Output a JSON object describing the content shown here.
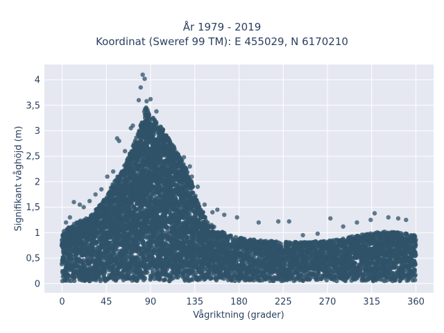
{
  "chart_data": {
    "type": "scatter",
    "title_lines": [
      "År 1979 - 2019",
      "Koordinat (Sweref 99 TM): E 455029, N 6170210"
    ],
    "xlabel": "Vågriktning (grader)",
    "ylabel": "Signifikant våghöjd (m)",
    "xlim": [
      -18,
      378
    ],
    "ylim": [
      -0.18,
      4.3
    ],
    "x_ticks": [
      0,
      45,
      90,
      135,
      180,
      225,
      270,
      315,
      360
    ],
    "x_tick_labels": [
      "0",
      "45",
      "90",
      "135",
      "180",
      "225",
      "270",
      "315",
      "360"
    ],
    "y_ticks": [
      0,
      0.5,
      1,
      1.5,
      2,
      2.5,
      3,
      3.5,
      4
    ],
    "y_tick_labels": [
      "0",
      "0,5",
      "1",
      "1,5",
      "2",
      "2,5",
      "3",
      "3,5",
      "4"
    ],
    "grid": true,
    "legend": "none",
    "marker_color": "#2f5269",
    "plot_background": "#e5e8f1",
    "envelope": {
      "direction": [
        0,
        10,
        20,
        30,
        40,
        45,
        50,
        60,
        70,
        80,
        85,
        90,
        100,
        110,
        120,
        130,
        135,
        140,
        150,
        160,
        170,
        180,
        200,
        225,
        250,
        270,
        290,
        300,
        315,
        330,
        345,
        360
      ],
      "upper_wave_height": [
        1.0,
        1.15,
        1.25,
        1.35,
        1.6,
        1.7,
        1.9,
        2.2,
        2.6,
        3.1,
        3.5,
        3.3,
        3.1,
        2.8,
        2.5,
        2.1,
        1.8,
        1.5,
        1.2,
        1.05,
        0.95,
        0.9,
        0.85,
        0.82,
        0.82,
        0.85,
        0.9,
        0.95,
        1.0,
        1.02,
        1.0,
        0.95
      ],
      "lower_wave_height": [
        0.05,
        0.05,
        0.05,
        0.05,
        0.05,
        0.05,
        0.05,
        0.05,
        0.05,
        0.05,
        0.05,
        0.05,
        0.05,
        0.05,
        0.05,
        0.05,
        0.05,
        0.05,
        0.05,
        0.05,
        0.05,
        0.05,
        0.05,
        0.05,
        0.05,
        0.05,
        0.05,
        0.05,
        0.05,
        0.05,
        0.05,
        0.05
      ]
    },
    "outlier_points": [
      {
        "x": 82,
        "y": 4.1
      },
      {
        "x": 84,
        "y": 4.02
      },
      {
        "x": 80,
        "y": 3.85
      },
      {
        "x": 78,
        "y": 3.6
      },
      {
        "x": 90,
        "y": 3.62
      },
      {
        "x": 86,
        "y": 3.58
      },
      {
        "x": 96,
        "y": 3.38
      },
      {
        "x": 72,
        "y": 3.1
      },
      {
        "x": 70,
        "y": 3.05
      },
      {
        "x": 58,
        "y": 2.8
      },
      {
        "x": 56,
        "y": 2.85
      },
      {
        "x": 118,
        "y": 2.45
      },
      {
        "x": 124,
        "y": 2.48
      },
      {
        "x": 130,
        "y": 2.3
      },
      {
        "x": 132,
        "y": 2.1
      },
      {
        "x": 138,
        "y": 1.9
      },
      {
        "x": 145,
        "y": 1.55
      },
      {
        "x": 153,
        "y": 1.4
      },
      {
        "x": 158,
        "y": 1.45
      },
      {
        "x": 165,
        "y": 1.35
      },
      {
        "x": 178,
        "y": 1.3
      },
      {
        "x": 200,
        "y": 1.2
      },
      {
        "x": 220,
        "y": 1.22
      },
      {
        "x": 231,
        "y": 1.22
      },
      {
        "x": 245,
        "y": 0.95
      },
      {
        "x": 260,
        "y": 0.98
      },
      {
        "x": 273,
        "y": 1.28
      },
      {
        "x": 286,
        "y": 1.12
      },
      {
        "x": 300,
        "y": 1.2
      },
      {
        "x": 314,
        "y": 1.25
      },
      {
        "x": 318,
        "y": 1.38
      },
      {
        "x": 332,
        "y": 1.3
      },
      {
        "x": 342,
        "y": 1.28
      },
      {
        "x": 350,
        "y": 1.25
      },
      {
        "x": 12,
        "y": 1.6
      },
      {
        "x": 18,
        "y": 1.55
      },
      {
        "x": 22,
        "y": 1.5
      },
      {
        "x": 34,
        "y": 1.75
      },
      {
        "x": 40,
        "y": 1.85
      },
      {
        "x": 46,
        "y": 2.1
      },
      {
        "x": 52,
        "y": 2.2
      },
      {
        "x": 4,
        "y": 1.2
      },
      {
        "x": 8,
        "y": 1.3
      },
      {
        "x": 28,
        "y": 1.62
      },
      {
        "x": 64,
        "y": 2.6
      }
    ]
  }
}
